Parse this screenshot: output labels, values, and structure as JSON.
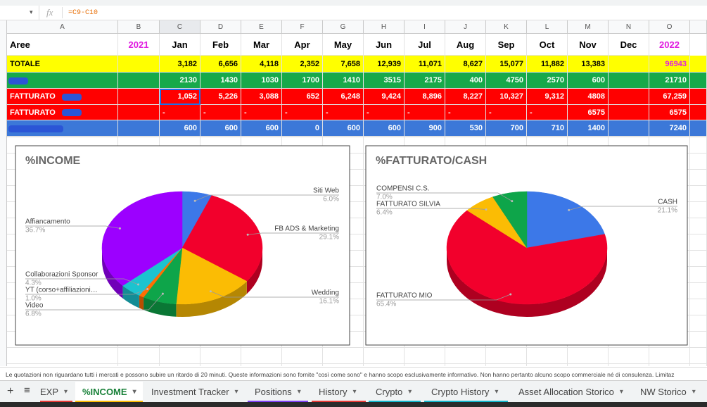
{
  "formula_bar": {
    "fx": "fx",
    "formula": "=C9-C10"
  },
  "columns": [
    "A",
    "B",
    "C",
    "D",
    "E",
    "F",
    "G",
    "H",
    "I",
    "J",
    "K",
    "L",
    "M",
    "N",
    "O"
  ],
  "header_row": {
    "label": "Aree",
    "cells": [
      "2021",
      "Jan",
      "Feb",
      "Mar",
      "Apr",
      "May",
      "Jun",
      "Jul",
      "Aug",
      "Sep",
      "Oct",
      "Nov",
      "Dec",
      "2022"
    ]
  },
  "rows": [
    {
      "label": "TOTALE",
      "cells": [
        null,
        "3,182",
        "6,656",
        "4,118",
        "2,352",
        "7,658",
        "12,939",
        "11,071",
        "8,627",
        "15,077",
        "11,882",
        "13,383",
        null,
        "96943"
      ]
    },
    {
      "label": null,
      "cells": [
        null,
        "2130",
        "1430",
        "1030",
        "1700",
        "1410",
        "3515",
        "2175",
        "400",
        "4750",
        "2570",
        "600",
        null,
        "21710"
      ]
    },
    {
      "label": "FATTURATO",
      "cells": [
        null,
        "1,052",
        "5,226",
        "3,088",
        "652",
        "6,248",
        "9,424",
        "8,896",
        "8,227",
        "10,327",
        "9,312",
        "4808",
        null,
        "67,259"
      ]
    },
    {
      "label": "FATTURATO",
      "cells": [
        null,
        "-",
        "-",
        "-",
        "-",
        "-",
        "-",
        "-",
        "-",
        "-",
        "-",
        "6575",
        null,
        "6575"
      ]
    },
    {
      "label": null,
      "cells": [
        null,
        "600",
        "600",
        "600",
        "0",
        "600",
        "600",
        "900",
        "530",
        "700",
        "710",
        "1400",
        null,
        "7240"
      ]
    }
  ],
  "chart_data": [
    {
      "type": "pie",
      "title": "%INCOME",
      "categories": [
        "Siti Web",
        "FB ADS & Marketing",
        "Wedding",
        "Video",
        "YT (corso+affiliazioni…",
        "Collaborazioni Sponsor",
        "Affiancamento"
      ],
      "values": [
        6.0,
        29.1,
        16.1,
        6.8,
        1.0,
        4.3,
        36.7
      ],
      "value_labels": [
        "6.0%",
        "29.1%",
        "16.1%",
        "6.8%",
        "1.0%",
        "4.3%",
        "36.7%"
      ],
      "colors": [
        "#3c78e8",
        "#f2002c",
        "#fbbc04",
        "#0ea54a",
        "#ff6d01",
        "#1cc3cf",
        "#9c00ff"
      ]
    },
    {
      "type": "pie",
      "title": "%FATTURATO/CASH",
      "categories": [
        "CASH",
        "FATTURATO MIO",
        "FATTURATO SILVIA",
        "COMPENSI C.S."
      ],
      "values": [
        21.1,
        65.4,
        6.4,
        7.0
      ],
      "value_labels": [
        "21.1%",
        "65.4%",
        "6.4%",
        "7.0%"
      ],
      "colors": [
        "#3c78e8",
        "#f2002c",
        "#fbbc04",
        "#0ea54a"
      ]
    }
  ],
  "disclaimer": "Le quotazioni non riguardano tutti i mercati e possono subire un ritardo di 20 minuti. Queste informazioni sono fornite \"così come sono\" e hanno scopo esclusivamente informativo. Non hanno pertanto alcuno scopo commerciale né di consulenza. Limitaz",
  "tabs": {
    "add": "+",
    "menu": "≡",
    "sheets": [
      "EXP",
      "%INCOME",
      "Investment Tracker",
      "Positions",
      "History",
      "Crypto",
      "Crypto History",
      "Asset Allocation Storico",
      "NW Storico"
    ],
    "active": 1
  }
}
